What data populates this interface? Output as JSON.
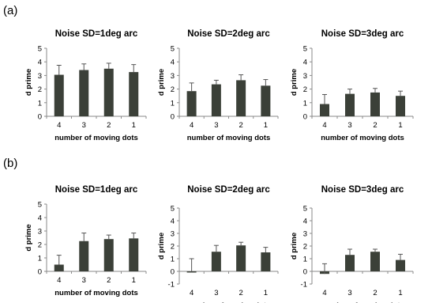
{
  "panels": [
    {
      "label": "(a)"
    },
    {
      "label": "(b)"
    }
  ],
  "chart_data": [
    {
      "panel": "(a)",
      "type": "bar",
      "title": "Noise SD=1deg arc",
      "categories": [
        "4",
        "3",
        "2",
        "1"
      ],
      "values": [
        3.05,
        3.4,
        3.5,
        3.25
      ],
      "errors": [
        0.7,
        0.45,
        0.4,
        0.55
      ],
      "xlabel": "number of moving dots",
      "ylabel": "d prime",
      "ylim": [
        0,
        5
      ],
      "yticks": [
        "0",
        "1",
        "2",
        "3",
        "4",
        "5"
      ],
      "bar_color": "#3b4038"
    },
    {
      "panel": "(a)",
      "type": "bar",
      "title": "Noise SD=2deg arc",
      "categories": [
        "4",
        "3",
        "2",
        "1"
      ],
      "values": [
        1.85,
        2.35,
        2.65,
        2.25
      ],
      "errors": [
        0.6,
        0.3,
        0.4,
        0.45
      ],
      "xlabel": "number of moving dots",
      "ylabel": "d prime",
      "ylim": [
        0,
        5
      ],
      "yticks": [
        "0",
        "1",
        "2",
        "3",
        "4",
        "5"
      ],
      "bar_color": "#3b4038"
    },
    {
      "panel": "(a)",
      "type": "bar",
      "title": "Noise SD=3deg arc",
      "categories": [
        "4",
        "3",
        "2",
        "1"
      ],
      "values": [
        0.9,
        1.65,
        1.75,
        1.5
      ],
      "errors": [
        0.7,
        0.35,
        0.3,
        0.35
      ],
      "xlabel": "number of moving dots",
      "ylabel": "d prime",
      "ylim": [
        0,
        5
      ],
      "yticks": [
        "0",
        "1",
        "2",
        "3",
        "4",
        "5"
      ],
      "bar_color": "#3b4038"
    },
    {
      "panel": "(b)",
      "type": "bar",
      "title": "Noise SD=1deg arc",
      "categories": [
        "4",
        "3",
        "2",
        "1"
      ],
      "values": [
        0.5,
        2.25,
        2.4,
        2.45
      ],
      "errors": [
        0.7,
        0.6,
        0.3,
        0.4
      ],
      "xlabel": "number of moving dots",
      "ylabel": "d prime",
      "ylim": [
        0,
        5
      ],
      "yticks": [
        "0",
        "1",
        "2",
        "3",
        "4",
        "5"
      ],
      "bar_color": "#3b4038"
    },
    {
      "panel": "(b)",
      "type": "bar",
      "title": "Noise SD=2deg arc",
      "categories": [
        "4",
        "3",
        "2",
        "1"
      ],
      "values": [
        -0.05,
        1.55,
        2.05,
        1.5
      ],
      "errors": [
        1.05,
        0.5,
        0.25,
        0.4
      ],
      "xlabel": "number of moving dots",
      "ylabel": "d prime",
      "ylim": [
        -1,
        5
      ],
      "yticks": [
        "-1",
        "0",
        "1",
        "2",
        "3",
        "4",
        "5"
      ],
      "bar_color": "#3b4038"
    },
    {
      "panel": "(b)",
      "type": "bar",
      "title": "Noise SD=3deg arc",
      "categories": [
        "4",
        "3",
        "2",
        "1"
      ],
      "values": [
        -0.2,
        1.3,
        1.55,
        0.9
      ],
      "errors": [
        0.8,
        0.45,
        0.2,
        0.45
      ],
      "xlabel": "number of moving dots",
      "ylabel": "d prime",
      "ylim": [
        -1,
        5
      ],
      "yticks": [
        "-1",
        "0",
        "1",
        "2",
        "3",
        "4",
        "5"
      ],
      "bar_color": "#3b4038"
    }
  ]
}
